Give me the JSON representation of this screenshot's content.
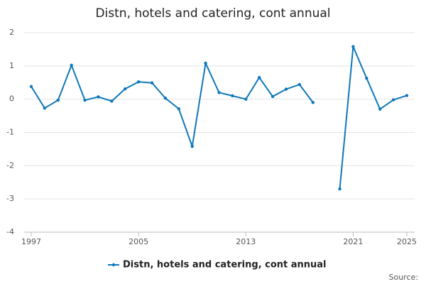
{
  "chart_data": {
    "type": "line",
    "title": "Distn, hotels and catering, cont annual",
    "x": [
      1997,
      1998,
      1999,
      2000,
      2001,
      2002,
      2003,
      2004,
      2005,
      2006,
      2007,
      2008,
      2009,
      2010,
      2011,
      2012,
      2013,
      2014,
      2015,
      2016,
      2017,
      2018,
      2019,
      2020,
      2021,
      2022,
      2023,
      2024,
      2025
    ],
    "series": [
      {
        "name": "Distn, hotels and catering, cont annual",
        "color": "#0f78b9",
        "values": [
          0.38,
          -0.27,
          -0.03,
          1.02,
          -0.03,
          0.07,
          -0.06,
          0.31,
          0.52,
          0.49,
          0.03,
          -0.29,
          -1.42,
          1.08,
          0.2,
          0.1,
          0.0,
          0.65,
          0.08,
          0.3,
          0.44,
          -0.1,
          null,
          -2.7,
          1.58,
          0.63,
          -0.3,
          -0.02,
          0.11
        ]
      }
    ],
    "xlim": [
      1997,
      2025
    ],
    "xticks": [
      1997,
      2005,
      2013,
      2021,
      2025
    ],
    "ylim": [
      -4,
      2
    ],
    "yticks": [
      -4,
      -3,
      -2,
      -1,
      0,
      1,
      2
    ],
    "grid": true,
    "legend": "bottom",
    "source": "Source:"
  }
}
